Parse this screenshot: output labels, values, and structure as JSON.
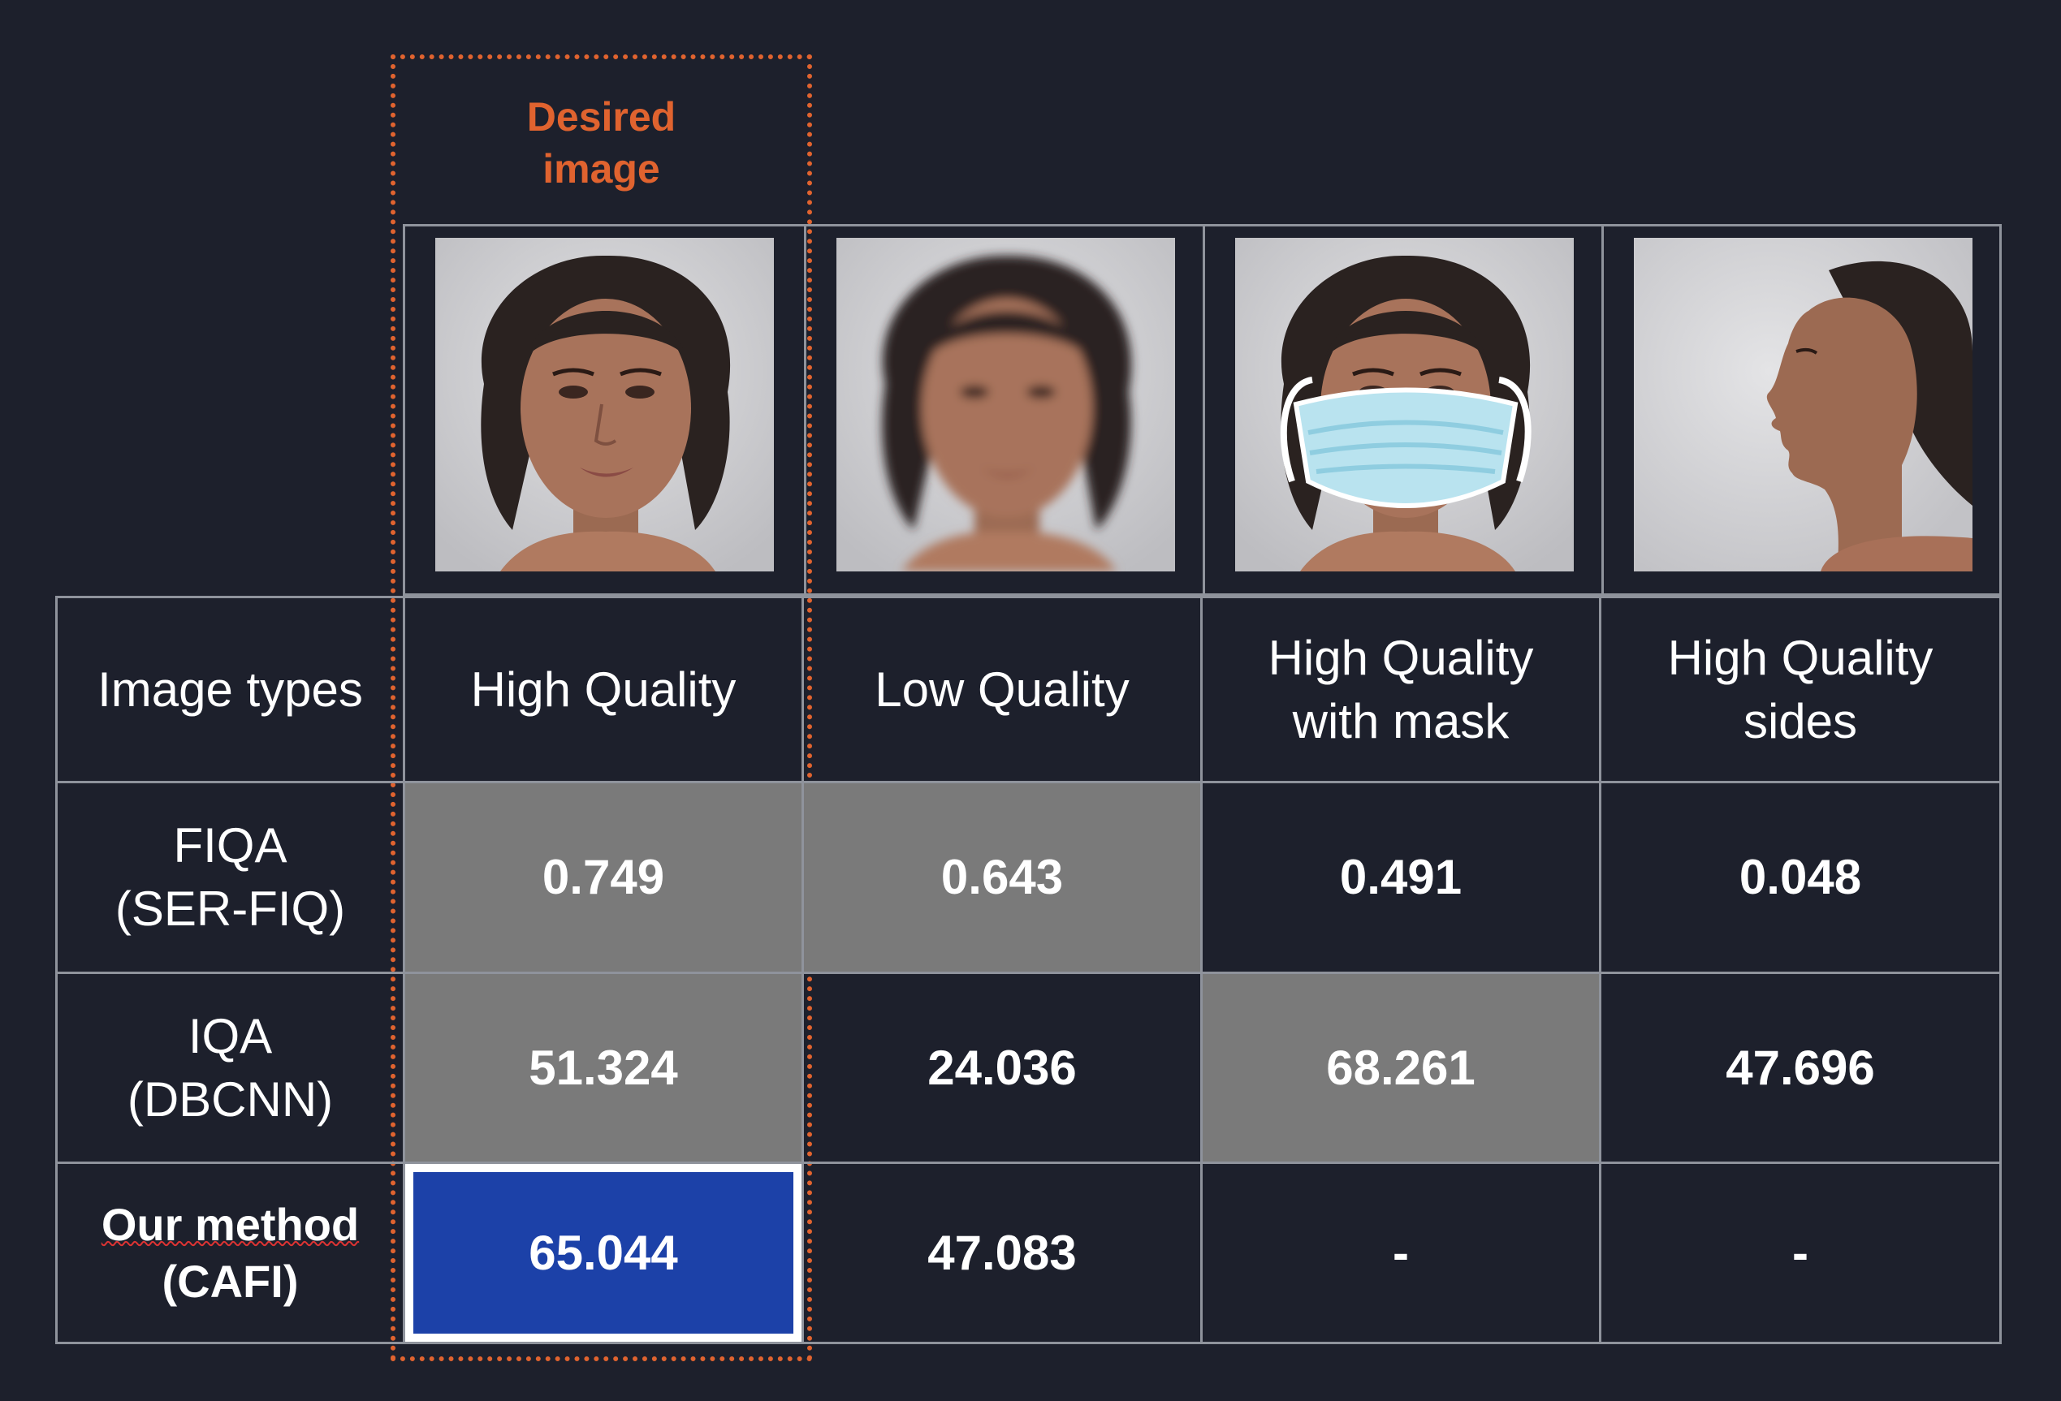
{
  "desired_label": [
    "Desired",
    "image"
  ],
  "columns": [
    {
      "type": [
        "High Quality"
      ],
      "photo": "face-frontal-sharp"
    },
    {
      "type": [
        "Low Quality"
      ],
      "photo": "face-frontal-blurred"
    },
    {
      "type": [
        "High Quality",
        "with mask"
      ],
      "photo": "face-with-mask"
    },
    {
      "type": [
        "High Quality",
        "sides"
      ],
      "photo": "face-profile"
    }
  ],
  "rows": [
    {
      "label": [
        "Image types"
      ]
    },
    {
      "label": [
        "FIQA",
        "(SER-FIQ)"
      ],
      "values": [
        "0.749",
        "0.643",
        "0.491",
        "0.048"
      ],
      "grey": [
        true,
        true,
        false,
        false
      ]
    },
    {
      "label": [
        "IQA",
        "(DBCNN)"
      ],
      "values": [
        "51.324",
        "24.036",
        "68.261",
        "47.696"
      ],
      "grey": [
        true,
        false,
        true,
        false
      ]
    },
    {
      "label": [
        "Our method",
        "(CAFI)"
      ],
      "values": [
        "65.044",
        "47.083",
        "-",
        "-"
      ],
      "highlight": [
        true,
        false,
        false,
        false
      ]
    }
  ],
  "colors": {
    "background": "#1d202c",
    "accent": "#e0632f",
    "highlight": "#1c41a8",
    "grey_cell": "#7a7a7a",
    "grid_line": "#8f939c"
  }
}
